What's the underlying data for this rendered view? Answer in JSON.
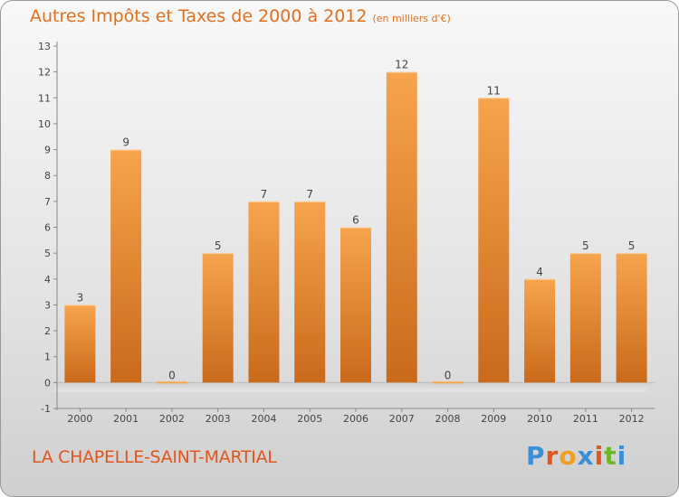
{
  "title": "Autres Impôts et Taxes de 2000 à 2012",
  "unit": "(en milliers d'€)",
  "commune": "LA CHAPELLE-SAINT-MARTIAL",
  "logo": {
    "text": "Proxiti",
    "colors": [
      "#3a8fd6",
      "#e2561c",
      "#f0a020",
      "#3a8fd6",
      "#e2561c",
      "#6bb82b",
      "#3a8fd6"
    ]
  },
  "colors": {
    "bar_light": "#f7a44e",
    "bar_dark": "#c96a1a",
    "axis": "#888888",
    "text": "#444444"
  },
  "chart_data": {
    "type": "bar",
    "categories": [
      "2000",
      "2001",
      "2002",
      "2003",
      "2004",
      "2005",
      "2006",
      "2007",
      "2008",
      "2009",
      "2010",
      "2011",
      "2012"
    ],
    "values": [
      3,
      9,
      0,
      5,
      7,
      7,
      6,
      12,
      0,
      11,
      4,
      5,
      5
    ],
    "ylim": [
      -1,
      13
    ],
    "yticks": [
      -1,
      0,
      1,
      2,
      3,
      4,
      5,
      6,
      7,
      8,
      9,
      10,
      11,
      12,
      13
    ],
    "grid": false,
    "data_labels": true
  }
}
